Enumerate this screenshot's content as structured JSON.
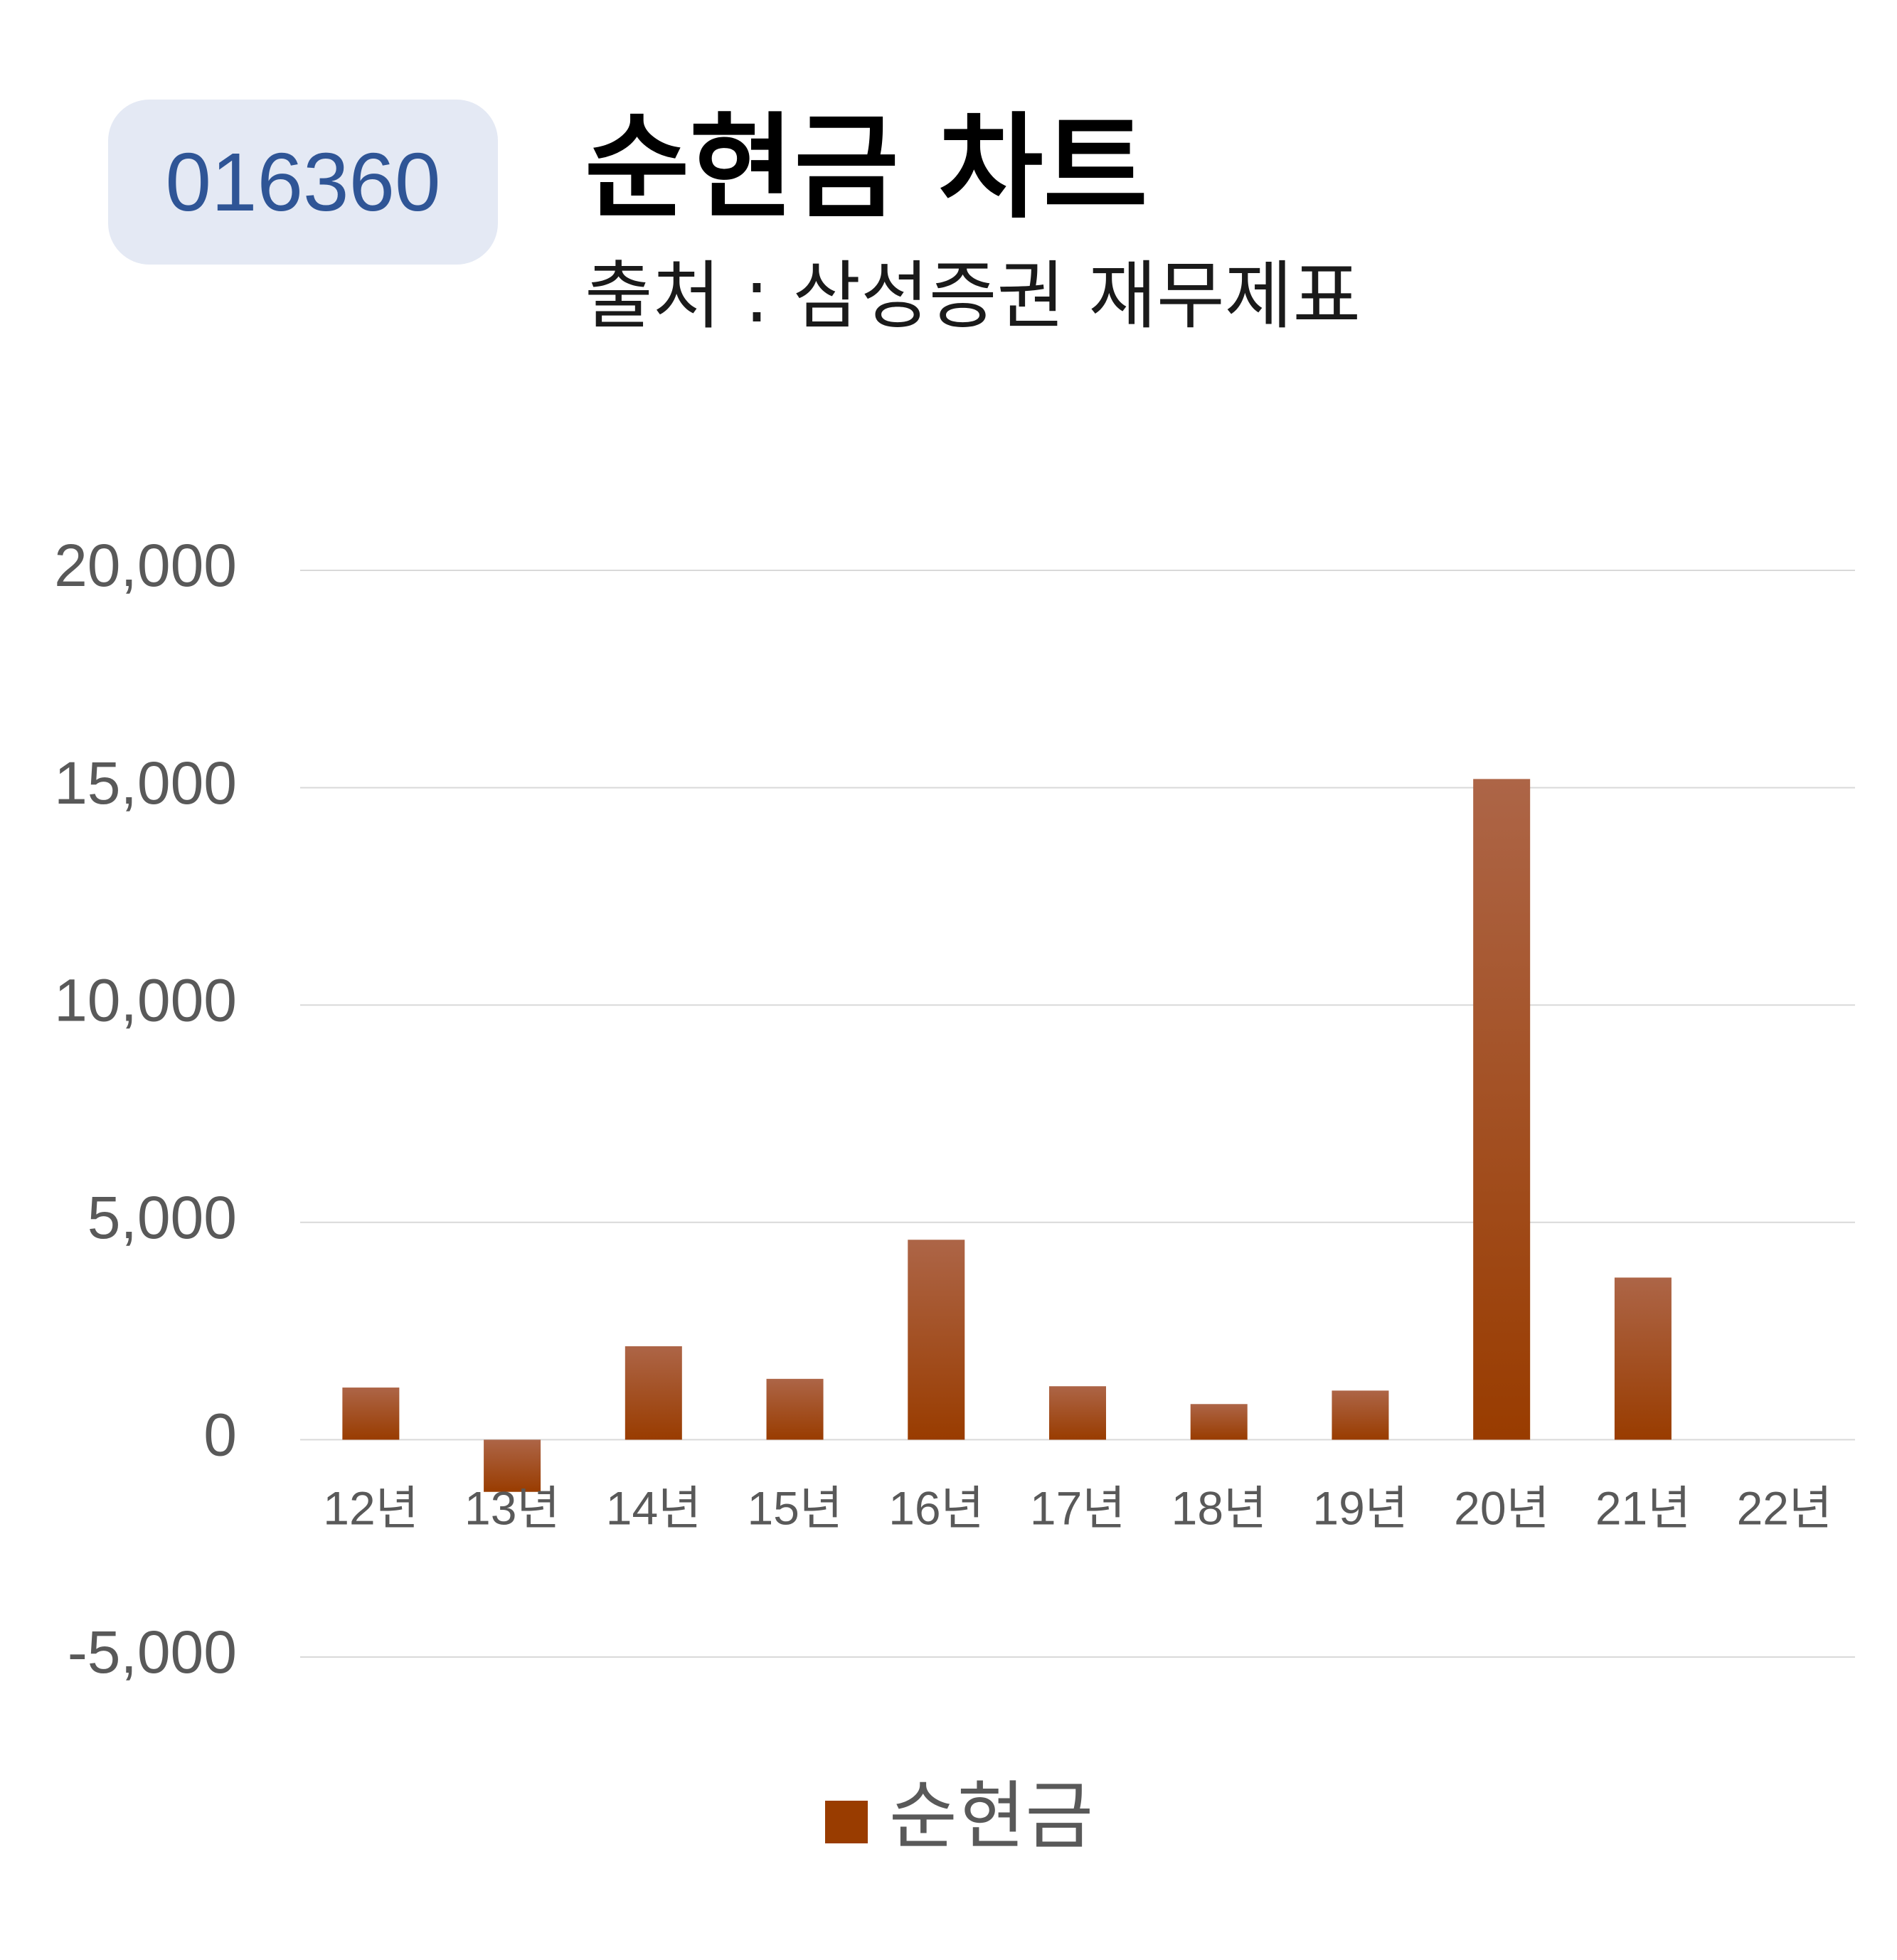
{
  "header": {
    "stock_code": "016360",
    "title": "순현금 차트",
    "subtitle": "출처 : 삼성증권 재무제표"
  },
  "colors": {
    "badge_bg": "#e4e9f4",
    "badge_text": "#2f5596",
    "bar_top": "#ad6547",
    "bar_bottom": "#993c00",
    "gridline": "#d9d9d9",
    "axis_text": "#595959"
  },
  "chart_data": {
    "type": "bar",
    "title": "순현금 차트",
    "subtitle": "출처 : 삼성증권 재무제표",
    "categories": [
      "12년",
      "13년",
      "14년",
      "15년",
      "16년",
      "17년",
      "18년",
      "19년",
      "20년",
      "21년",
      "22년"
    ],
    "series": [
      {
        "name": "순현금",
        "values": [
          1200,
          -1200,
          2150,
          1400,
          4600,
          1230,
          820,
          1130,
          15200,
          3730,
          null
        ]
      }
    ],
    "ylim": [
      -5000,
      20000
    ],
    "yticks": [
      20000,
      15000,
      10000,
      5000,
      0,
      -5000
    ],
    "ytick_labels": [
      "20,000",
      "15,000",
      "10,000",
      "5,000",
      "0",
      "-5,000"
    ],
    "grid": true,
    "legend": "bottom"
  }
}
